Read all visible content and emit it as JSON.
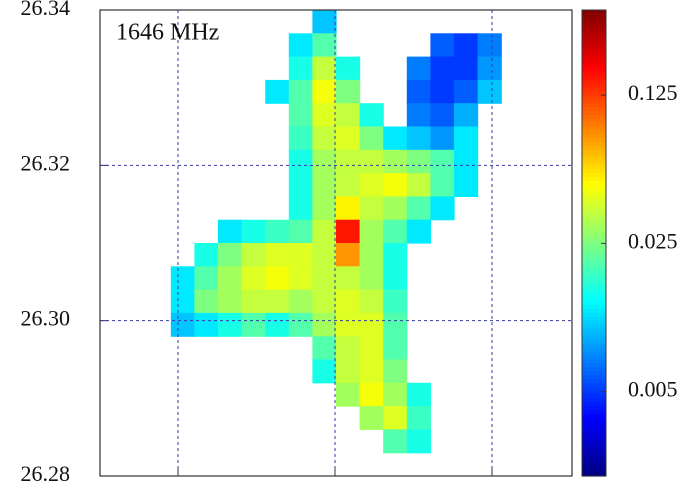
{
  "chart_data": {
    "type": "heatmap",
    "annotation": "1646 MHz",
    "ylim": [
      26.28,
      26.34
    ],
    "yticks": [
      26.28,
      {
        "value": 26.3,
        "label": "26.30"
      },
      26.32,
      26.34
    ],
    "grid": true,
    "colormap": "jet",
    "clog": true,
    "clim": [
      0.002,
      0.315
    ],
    "cticks": [
      0.005,
      0.025,
      0.125
    ],
    "z": [
      [
        null,
        null,
        null,
        null,
        null,
        null,
        null,
        null,
        null,
        0.01,
        null,
        null,
        null,
        null,
        null,
        null,
        null,
        null,
        null,
        null
      ],
      [
        null,
        null,
        null,
        null,
        null,
        null,
        null,
        null,
        0.012,
        0.02,
        null,
        null,
        null,
        null,
        0.006,
        0.005,
        0.007,
        null,
        null,
        null
      ],
      [
        null,
        null,
        null,
        null,
        null,
        null,
        null,
        null,
        0.015,
        0.035,
        0.015,
        null,
        null,
        0.007,
        0.005,
        0.005,
        0.008,
        null,
        null,
        null
      ],
      [
        null,
        null,
        null,
        null,
        null,
        null,
        null,
        0.012,
        0.02,
        0.045,
        0.025,
        null,
        null,
        0.006,
        0.005,
        0.006,
        0.01,
        null,
        null,
        null
      ],
      [
        null,
        null,
        null,
        null,
        null,
        null,
        null,
        null,
        0.02,
        0.04,
        0.035,
        0.015,
        null,
        0.007,
        0.006,
        0.009,
        null,
        null,
        null,
        null
      ],
      [
        null,
        null,
        null,
        null,
        null,
        null,
        null,
        null,
        0.018,
        0.035,
        0.04,
        0.025,
        0.012,
        0.01,
        0.008,
        0.012,
        null,
        null,
        null,
        null
      ],
      [
        null,
        null,
        null,
        null,
        null,
        null,
        null,
        null,
        0.015,
        0.03,
        0.035,
        0.035,
        0.03,
        0.025,
        0.02,
        0.012,
        null,
        null,
        null,
        null
      ],
      [
        null,
        null,
        null,
        null,
        null,
        null,
        null,
        null,
        0.015,
        0.03,
        0.035,
        0.04,
        0.045,
        0.035,
        0.02,
        0.012,
        null,
        null,
        null,
        null
      ],
      [
        null,
        null,
        null,
        null,
        null,
        null,
        null,
        null,
        0.015,
        0.03,
        0.05,
        0.035,
        0.03,
        0.02,
        0.012,
        null,
        null,
        null,
        null,
        null
      ],
      [
        null,
        null,
        null,
        null,
        null,
        0.012,
        0.015,
        0.018,
        0.02,
        0.035,
        0.15,
        0.03,
        0.02,
        0.012,
        null,
        null,
        null,
        null,
        null,
        null
      ],
      [
        null,
        null,
        null,
        null,
        0.015,
        0.025,
        0.035,
        0.04,
        0.04,
        0.035,
        0.08,
        0.03,
        0.015,
        null,
        null,
        null,
        null,
        null,
        null,
        null
      ],
      [
        null,
        null,
        null,
        0.012,
        0.02,
        0.03,
        0.04,
        0.045,
        0.04,
        0.035,
        0.035,
        0.03,
        0.015,
        null,
        null,
        null,
        null,
        null,
        null,
        null
      ],
      [
        null,
        null,
        null,
        0.012,
        0.025,
        0.03,
        0.035,
        0.035,
        0.03,
        0.035,
        0.04,
        0.035,
        0.018,
        null,
        null,
        null,
        null,
        null,
        null,
        null
      ],
      [
        null,
        null,
        null,
        0.01,
        0.012,
        0.015,
        0.02,
        0.015,
        0.02,
        0.03,
        0.04,
        0.04,
        0.02,
        null,
        null,
        null,
        null,
        null,
        null,
        null
      ],
      [
        null,
        null,
        null,
        null,
        null,
        null,
        null,
        null,
        null,
        0.02,
        0.035,
        0.04,
        0.02,
        null,
        null,
        null,
        null,
        null,
        null,
        null
      ],
      [
        null,
        null,
        null,
        null,
        null,
        null,
        null,
        null,
        null,
        0.015,
        0.035,
        0.04,
        0.025,
        null,
        null,
        null,
        null,
        null,
        null,
        null
      ],
      [
        null,
        null,
        null,
        null,
        null,
        null,
        null,
        null,
        null,
        null,
        0.03,
        0.045,
        0.03,
        0.015,
        null,
        null,
        null,
        null,
        null,
        null
      ],
      [
        null,
        null,
        null,
        null,
        null,
        null,
        null,
        null,
        null,
        null,
        null,
        0.03,
        0.04,
        0.018,
        null,
        null,
        null,
        null,
        null,
        null
      ],
      [
        null,
        null,
        null,
        null,
        null,
        null,
        null,
        null,
        null,
        null,
        null,
        null,
        0.02,
        0.015,
        null,
        null,
        null,
        null,
        null,
        null
      ],
      [
        null,
        null,
        null,
        null,
        null,
        null,
        null,
        null,
        null,
        null,
        null,
        null,
        null,
        null,
        null,
        null,
        null,
        null,
        null,
        null
      ]
    ]
  }
}
